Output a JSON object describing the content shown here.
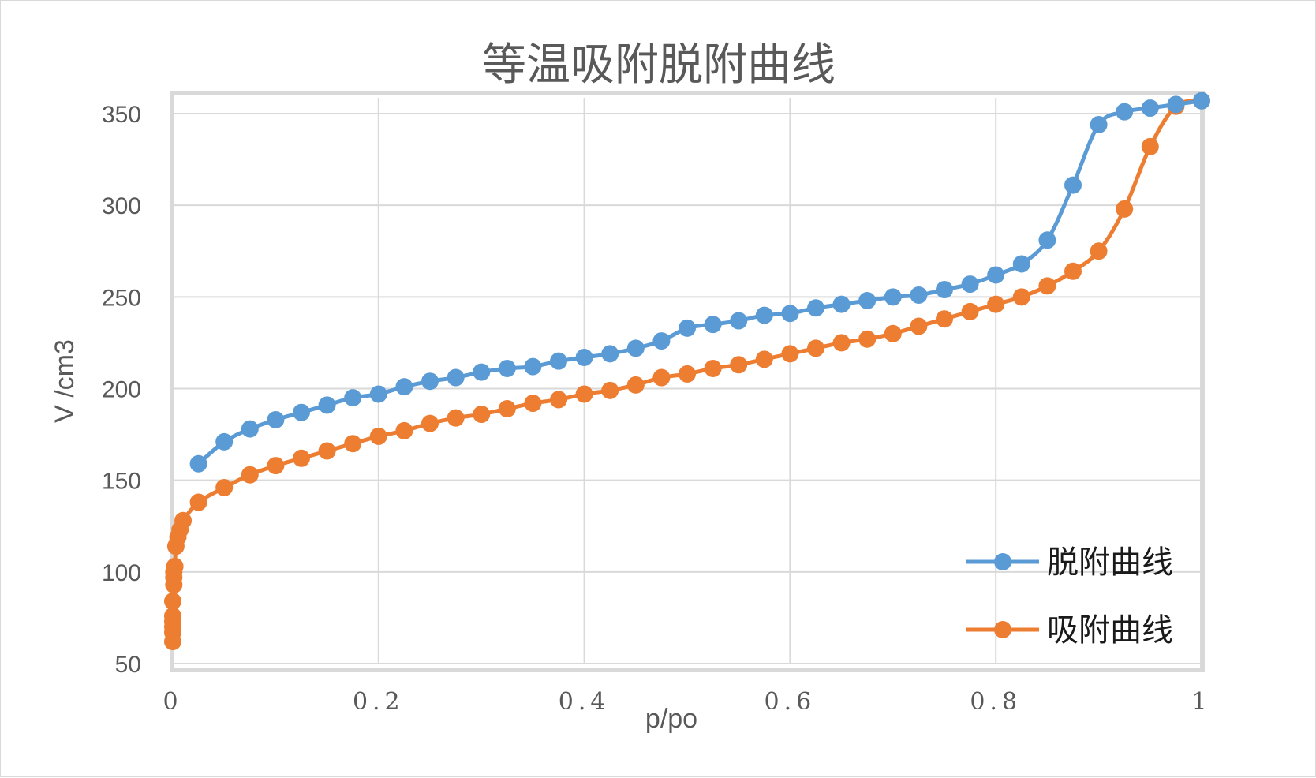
{
  "chart_data": {
    "type": "line",
    "title": "等温吸附脱附曲线",
    "xlabel": "p/po",
    "ylabel": "V /cm3",
    "xlim": [
      0,
      1
    ],
    "ylim": [
      50,
      350
    ],
    "x_ticks": [
      0,
      0.2,
      0.4,
      0.6,
      0.8,
      1
    ],
    "x_tick_labels": [
      "0",
      "0.2",
      "0.4",
      "0.6",
      "0.8",
      "1"
    ],
    "y_ticks": [
      50,
      100,
      150,
      200,
      250,
      300,
      350
    ],
    "y_tick_labels": [
      "50",
      "100",
      "150",
      "200",
      "250",
      "300",
      "350"
    ],
    "grid": true,
    "legend_position": "bottom-right",
    "series": [
      {
        "name": "脱附曲线",
        "color": "#5b9bd5",
        "x": [
          0.025,
          0.05,
          0.075,
          0.1,
          0.125,
          0.15,
          0.175,
          0.2,
          0.225,
          0.25,
          0.275,
          0.3,
          0.325,
          0.35,
          0.375,
          0.4,
          0.425,
          0.45,
          0.475,
          0.5,
          0.525,
          0.55,
          0.575,
          0.6,
          0.625,
          0.65,
          0.675,
          0.7,
          0.725,
          0.75,
          0.775,
          0.8,
          0.825,
          0.85,
          0.875,
          0.9,
          0.925,
          0.95,
          0.975,
          1.0
        ],
        "y": [
          159,
          171,
          178,
          183,
          187,
          191,
          195,
          197,
          201,
          204,
          206,
          209,
          211,
          212,
          215,
          217,
          219,
          222,
          226,
          233,
          235,
          237,
          240,
          241,
          244,
          246,
          248,
          250,
          251,
          254,
          257,
          262,
          268,
          281,
          311,
          344,
          351,
          353,
          355,
          357
        ]
      },
      {
        "name": "吸附曲线",
        "color": "#ed7d31",
        "x": [
          0.0,
          0.0,
          0.0,
          0.0,
          0.0,
          0.0,
          0.001,
          0.001,
          0.001,
          0.002,
          0.003,
          0.005,
          0.007,
          0.01,
          0.025,
          0.05,
          0.075,
          0.1,
          0.125,
          0.15,
          0.175,
          0.2,
          0.225,
          0.25,
          0.275,
          0.3,
          0.325,
          0.35,
          0.375,
          0.4,
          0.425,
          0.45,
          0.475,
          0.5,
          0.525,
          0.55,
          0.575,
          0.6,
          0.625,
          0.65,
          0.675,
          0.7,
          0.725,
          0.75,
          0.775,
          0.8,
          0.825,
          0.85,
          0.875,
          0.9,
          0.925,
          0.95,
          0.975,
          1.0
        ],
        "y": [
          62,
          67,
          70,
          73,
          76,
          84,
          93,
          97,
          100,
          103,
          114,
          119,
          123,
          128,
          138,
          146,
          153,
          158,
          162,
          166,
          170,
          174,
          177,
          181,
          184,
          186,
          189,
          192,
          194,
          197,
          199,
          202,
          206,
          208,
          211,
          213,
          216,
          219,
          222,
          225,
          227,
          230,
          234,
          238,
          242,
          246,
          250,
          256,
          264,
          275,
          298,
          332,
          354,
          357
        ]
      }
    ]
  }
}
